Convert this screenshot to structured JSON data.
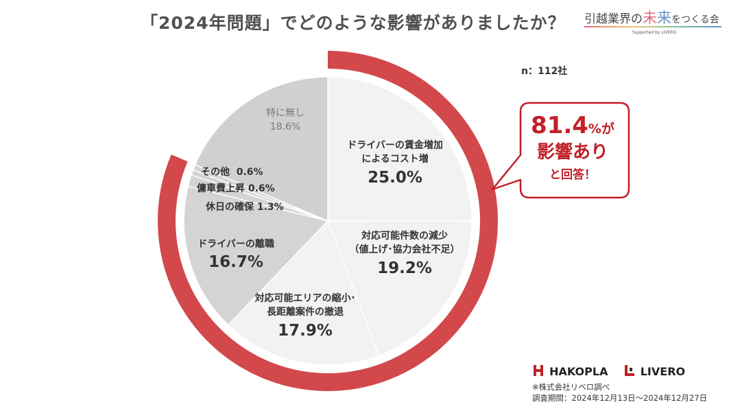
{
  "title": "「2024年問題」でどのような影響がありましたか？",
  "brand": {
    "text_prefix": "引越業界の",
    "text_mirai1": "未",
    "text_mirai2": "来",
    "text_suffix": "をつくる会",
    "sub": "Supported by LIVERO"
  },
  "sample_size": "n：112社",
  "colors": {
    "highlight_ring": "#d2484b",
    "slice_affected": "#f2f2f2",
    "slice_other": "#d4d4d4",
    "slice_none": "#d0d0d0",
    "divider": "#ffffff",
    "callout_border": "#c21f26",
    "callout_text": "#c21f26"
  },
  "chart_data": {
    "type": "pie",
    "title": "「2024年問題」でどのような影響がありましたか？",
    "slices": [
      {
        "label": "ドライバーの賃金増加によるコスト増",
        "label_lines": [
          "ドライバーの賃金増加",
          "によるコスト増"
        ],
        "value": 25.0,
        "pct_text": "25.0%",
        "group": "affected"
      },
      {
        "label": "対応可能件数の減少（値上げ･協力会社不足）",
        "label_lines": [
          "対応可能件数の減少",
          "（値上げ･協力会社不足）"
        ],
        "value": 19.2,
        "pct_text": "19.2%",
        "group": "affected"
      },
      {
        "label": "対応可能エリアの縮小･長距離案件の撤退",
        "label_lines": [
          "対応可能エリアの縮小･",
          "長距離案件の撤退"
        ],
        "value": 17.9,
        "pct_text": "17.9%",
        "group": "affected"
      },
      {
        "label": "ドライバーの離職",
        "label_lines": [
          "ドライバーの離職"
        ],
        "value": 16.7,
        "pct_text": "16.7%",
        "group": "affected"
      },
      {
        "label": "休日の確保",
        "label_lines": [
          "休日の確保"
        ],
        "value": 1.3,
        "pct_text": "1.3%",
        "group": "affected"
      },
      {
        "label": "傭車費上昇",
        "label_lines": [
          "傭車費上昇"
        ],
        "value": 0.6,
        "pct_text": "0.6%",
        "group": "affected"
      },
      {
        "label": "その他",
        "label_lines": [
          "その他"
        ],
        "value": 0.6,
        "pct_text": "0.6%",
        "group": "affected"
      },
      {
        "label": "特に無し",
        "label_lines": [
          "特に無し"
        ],
        "value": 18.6,
        "pct_text": "18.6%",
        "group": "none"
      }
    ],
    "highlight": {
      "value": 81.4,
      "label": "影響あり"
    }
  },
  "callout": {
    "value": "81.4",
    "value_suffix": "%が",
    "line2": "影響あり",
    "line3": "と回答！"
  },
  "logos": {
    "hakopla": "HAKOPLA",
    "livero": "LIVERO"
  },
  "footnote": {
    "line1": "※株式会社リベロ調べ",
    "line2": "調査期間：2024年12月13日～2024年12月27日"
  }
}
